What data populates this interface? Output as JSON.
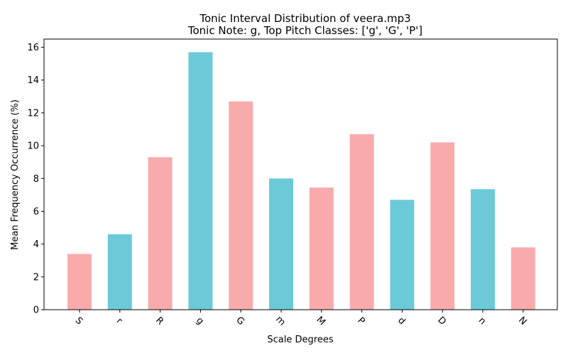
{
  "chart_data": {
    "type": "bar",
    "title": "Tonic Interval Distribution of veera.mp3",
    "subtitle": "Tonic Note: g, Top Pitch Classes: ['g', 'G', 'P']",
    "xlabel": "Scale Degrees",
    "ylabel": "Mean Frequency Occurrence (%)",
    "categories": [
      "S",
      "r",
      "R",
      "g",
      "G",
      "m",
      "M",
      "P",
      "d",
      "D",
      "n",
      "N"
    ],
    "values": [
      3.4,
      4.6,
      9.3,
      15.7,
      12.7,
      8.0,
      7.45,
      10.7,
      6.7,
      10.2,
      7.35,
      3.8
    ],
    "colors": [
      "#f9abac",
      "#6ccad8",
      "#f9abac",
      "#6ccad8",
      "#f9abac",
      "#6ccad8",
      "#f9abac",
      "#f9abac",
      "#6ccad8",
      "#f9abac",
      "#6ccad8",
      "#f9abac"
    ],
    "yticks": [
      0,
      2,
      4,
      6,
      8,
      10,
      12,
      14,
      16
    ],
    "ylim": [
      0,
      16.5
    ],
    "grid": false,
    "legend": "none"
  }
}
